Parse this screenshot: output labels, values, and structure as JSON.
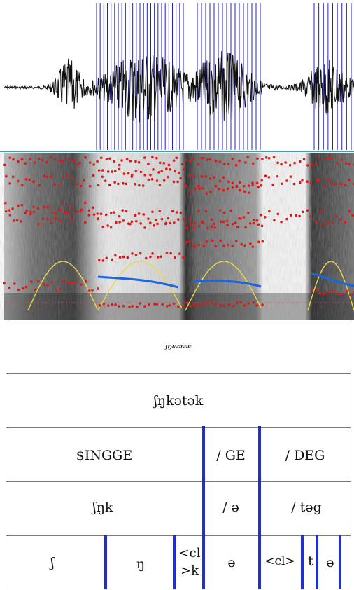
{
  "colors": {
    "pulse_line": "#2020c8",
    "formant_dot": "#e01818",
    "pitch_line": "#1a66e0",
    "intensity_line": "#e8d84a",
    "tier_boundary": "#1f2fd0",
    "separator": "#3aa0b0"
  },
  "tiers": {
    "tier1": {
      "label": "ʃŋkətək"
    },
    "tier2": {
      "label": "ʃŋkətək"
    },
    "tier3": {
      "seg1": "$INGGE",
      "seg2": "/ GE",
      "seg3": "/ DEG"
    },
    "tier4": {
      "seg1": "ʃŋk",
      "seg2": "/ ə",
      "seg3": "/ təg"
    },
    "tier5": {
      "seg1": "ʃ",
      "seg2": "ŋ",
      "seg3a": "<cl",
      "seg3b": ">k",
      "seg4": "ə",
      "seg5": "<cl>",
      "seg6": "t",
      "seg7": "ə"
    }
  }
}
